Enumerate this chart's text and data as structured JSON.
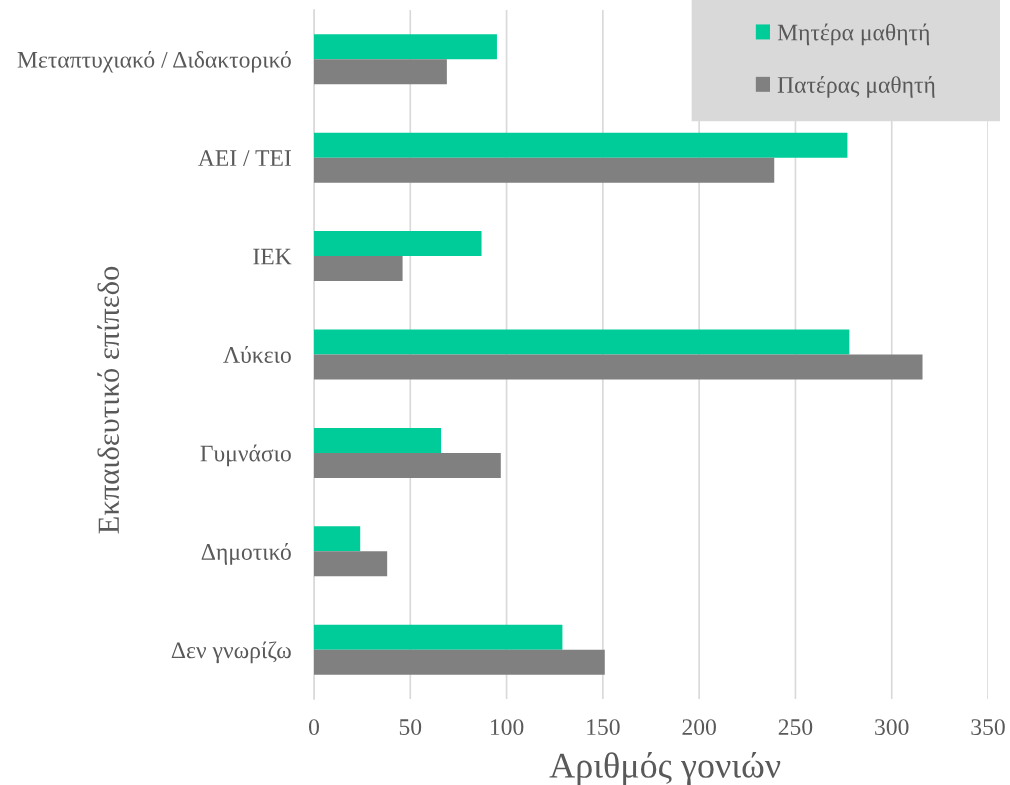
{
  "chart_data": {
    "type": "bar",
    "orientation": "horizontal",
    "xlabel": "Αριθμός γονιών",
    "ylabel": "Εκπαιδευτικό επίπεδο",
    "categories": [
      "Μεταπτυχιακό / Διδακτορικό",
      "ΑΕΙ / ΤΕΙ",
      "ΙΕΚ",
      "Λύκειο",
      "Γυμνάσιο",
      "Δημοτικό",
      "Δεν γνωρίζω"
    ],
    "series": [
      {
        "name": "Μητέρα μαθητή",
        "color": "#00cc99",
        "values": [
          95,
          277,
          87,
          278,
          66,
          24,
          129
        ]
      },
      {
        "name": "Πατέρας μαθητή",
        "color": "#808080",
        "values": [
          69,
          239,
          46,
          316,
          97,
          38,
          151
        ]
      }
    ],
    "xlim": [
      0,
      350
    ],
    "xticks": [
      0,
      50,
      100,
      150,
      200,
      250,
      300,
      350
    ],
    "grid": "x",
    "legend": "top right"
  }
}
